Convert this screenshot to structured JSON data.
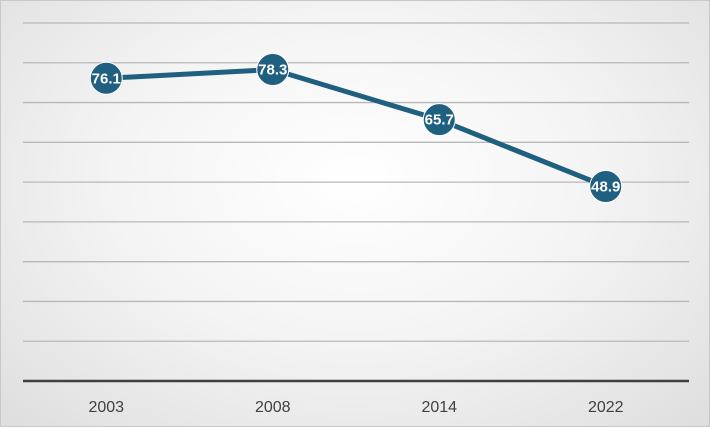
{
  "chart_data": {
    "type": "line",
    "categories": [
      "2003",
      "2008",
      "2014",
      "2022"
    ],
    "series": [
      {
        "values": [
          76.1,
          78.3,
          65.7,
          48.9
        ]
      }
    ],
    "data_labels": [
      "76.1",
      "78.3",
      "65.7",
      "48.9"
    ],
    "ylim": [
      0,
      90
    ],
    "y_gridline_step": 10,
    "y_tick_labels_visible": false,
    "grid": true,
    "legend": "none",
    "colors": {
      "series": "#1f5f80",
      "gridline": "#b8b8b8",
      "axis": "#404040",
      "label_text": "#ffffff"
    }
  }
}
